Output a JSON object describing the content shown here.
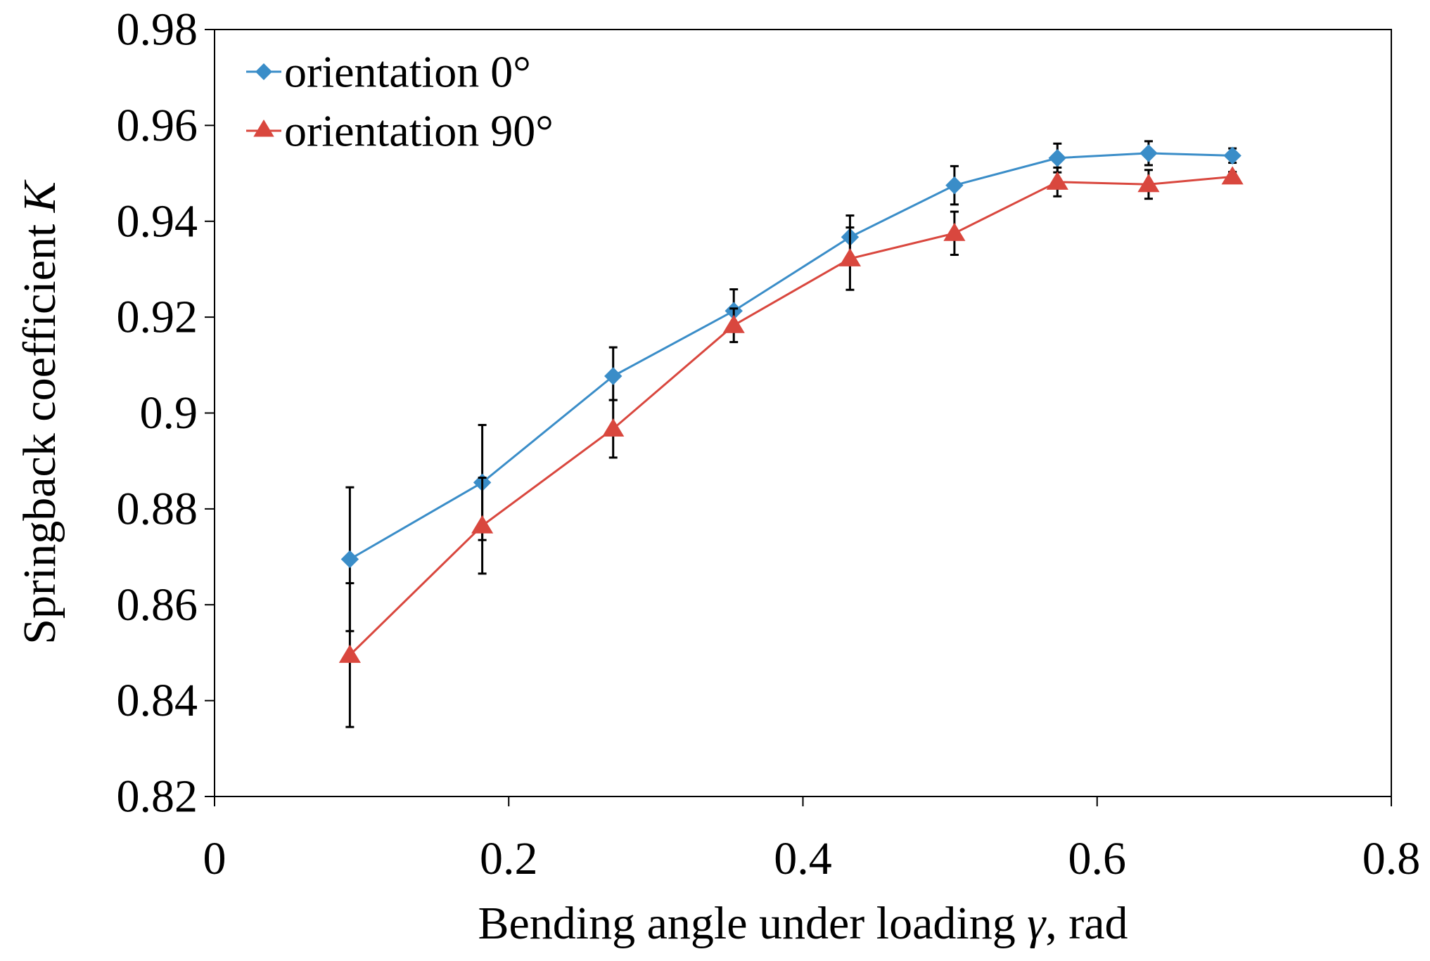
{
  "chart_data": {
    "type": "line",
    "title": "",
    "xlabel": "Bending angle under loading γ, rad",
    "xlabel_parts": {
      "before": "Bending angle under loading ",
      "symbol": "γ",
      "after": ", rad"
    },
    "ylabel": "Springback coefficient K",
    "ylabel_parts": {
      "before": "Springback coefficient ",
      "symbol": "K"
    },
    "xlim": [
      0,
      0.8
    ],
    "ylim": [
      0.82,
      0.98
    ],
    "xticks": [
      0,
      0.2,
      0.4,
      0.6,
      0.8
    ],
    "xtick_labels": [
      "0",
      "0.2",
      "0.4",
      "0.6",
      "0.8"
    ],
    "yticks": [
      0.82,
      0.84,
      0.86,
      0.88,
      0.9,
      0.92,
      0.94,
      0.96,
      0.98
    ],
    "ytick_labels": [
      "0.82",
      "0.84",
      "0.86",
      "0.88",
      "0.9",
      "0.92",
      "0.94",
      "0.96",
      "0.98"
    ],
    "grid": false,
    "legend_position": "top-left",
    "series": [
      {
        "name": "orientation 0°",
        "color": "#3a8dc8",
        "marker": "diamond",
        "x": [
          0.092,
          0.182,
          0.271,
          0.353,
          0.432,
          0.503,
          0.573,
          0.635,
          0.692
        ],
        "y": [
          0.8695,
          0.8855,
          0.9077,
          0.9213,
          0.9367,
          0.9475,
          0.9532,
          0.9542,
          0.9537
        ],
        "err_low": [
          0.015,
          0.012,
          0.005,
          0.0035,
          0.0045,
          0.004,
          0.003,
          0.0025,
          0.0015
        ],
        "err_high": [
          0.015,
          0.012,
          0.006,
          0.0045,
          0.0045,
          0.004,
          0.003,
          0.0025,
          0.0015
        ]
      },
      {
        "name": "orientation 90°",
        "color": "#d9473e",
        "marker": "triangle",
        "x": [
          0.092,
          0.182,
          0.271,
          0.353,
          0.432,
          0.503,
          0.573,
          0.635,
          0.692
        ],
        "y": [
          0.8495,
          0.8765,
          0.8967,
          0.9183,
          0.9322,
          0.9375,
          0.9482,
          0.9477,
          0.9493
        ],
        "err_low": [
          0.015,
          0.01,
          0.006,
          0.0035,
          0.0065,
          0.0045,
          0.003,
          0.003,
          0.001
        ],
        "err_high": [
          0.015,
          0.01,
          0.006,
          0.0035,
          0.0065,
          0.0045,
          0.003,
          0.003,
          0.001
        ]
      }
    ]
  }
}
